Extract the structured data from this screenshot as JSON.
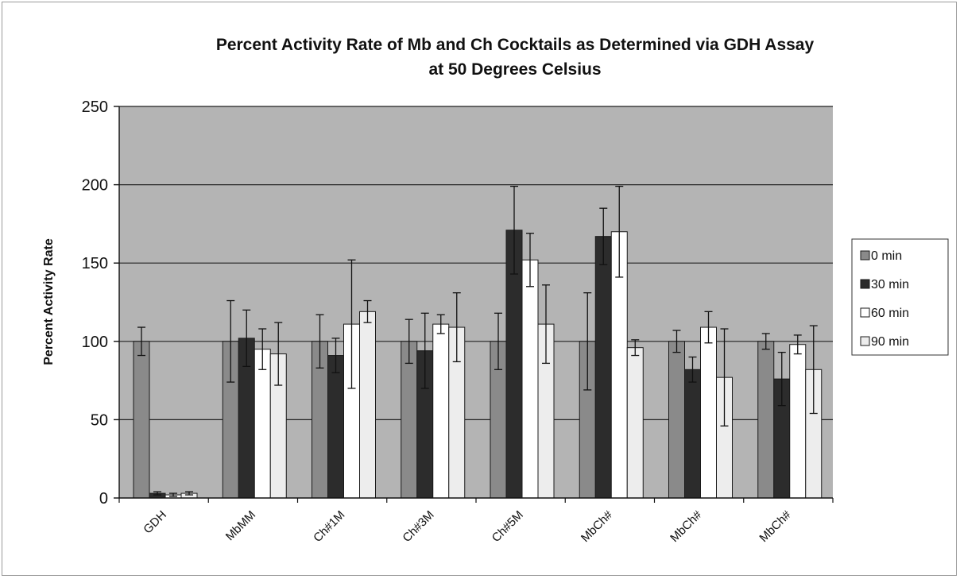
{
  "chart_data": {
    "type": "bar",
    "title_line1": "Percent Activity Rate of Mb and Ch Cocktails as Determined via GDH Assay",
    "title_line2": "at 50 Degrees Celsius",
    "xlabel": "",
    "ylabel": "Percent Activity Rate",
    "ylim": [
      0,
      250
    ],
    "yticks": [
      0,
      50,
      100,
      150,
      200,
      250
    ],
    "grid": true,
    "legend_position": "right",
    "plot_background": "#b4b4b4",
    "categories": [
      "GDH",
      "MbMM",
      "Ch#1M",
      "Ch#3M",
      "Ch#5M",
      "MbCh#",
      "MbCh#",
      "MbCh#"
    ],
    "series": [
      {
        "name": "0 min",
        "color": "#8a8a8a",
        "values": [
          100,
          100,
          100,
          100,
          100,
          100,
          100,
          100
        ],
        "errors": [
          9,
          26,
          17,
          14,
          18,
          31,
          7,
          5
        ]
      },
      {
        "name": "30 min",
        "color": "#2c2c2c",
        "values": [
          3,
          102,
          91,
          94,
          171,
          167,
          82,
          76
        ],
        "errors": [
          1,
          18,
          11,
          24,
          28,
          18,
          8,
          17
        ]
      },
      {
        "name": "60 min",
        "color": "#ffffff",
        "values": [
          2,
          95,
          111,
          111,
          152,
          170,
          109,
          98
        ],
        "errors": [
          1,
          13,
          41,
          6,
          17,
          29,
          10,
          6
        ]
      },
      {
        "name": "90 min",
        "color": "#ededed",
        "values": [
          3,
          92,
          119,
          109,
          111,
          96,
          77,
          82
        ],
        "errors": [
          1,
          20,
          7,
          22,
          25,
          5,
          31,
          28
        ]
      }
    ]
  }
}
